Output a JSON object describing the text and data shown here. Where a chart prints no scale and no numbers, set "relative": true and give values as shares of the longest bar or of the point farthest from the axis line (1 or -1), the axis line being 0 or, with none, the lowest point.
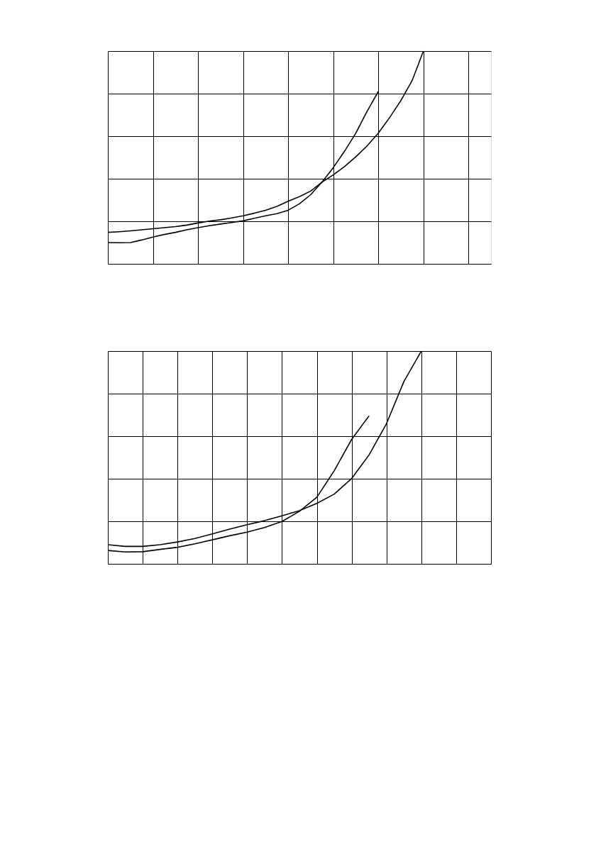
{
  "chart_data": [
    {
      "type": "line",
      "relative": true,
      "grid": true,
      "tick_labels": false,
      "marker": "none",
      "line_style": "solid",
      "categories": [
        null,
        null,
        null,
        null,
        null,
        null,
        null,
        null,
        null,
        null,
        null,
        null,
        null,
        null,
        null,
        null,
        null,
        null,
        null,
        null,
        null,
        null,
        null,
        null,
        null,
        null,
        null,
        null,
        null,
        null,
        null,
        null,
        null,
        null,
        null
      ],
      "series": [
        {
          "color": "#000000",
          "values": [
            0.148,
            0.151,
            0.155,
            0.16,
            0.165,
            0.17,
            0.175,
            0.182,
            0.192,
            0.201,
            0.207,
            0.216,
            0.226,
            0.238,
            0.252,
            0.27,
            0.294,
            0.316,
            0.342,
            0.384,
            0.418,
            0.457,
            0.503,
            0.554,
            0.614,
            0.687,
            0.767,
            0.861,
            1.0,
            null,
            null,
            null,
            null,
            null,
            null
          ]
        },
        {
          "color": "#000000",
          "values": [
            0.1,
            0.099,
            0.1,
            0.112,
            0.126,
            0.138,
            0.148,
            0.16,
            0.17,
            0.179,
            0.187,
            0.194,
            0.202,
            0.214,
            0.226,
            0.236,
            0.252,
            0.282,
            0.325,
            0.384,
            0.452,
            0.529,
            0.614,
            0.716,
            0.81,
            null,
            null,
            null,
            null,
            null,
            null,
            null,
            null,
            null,
            null
          ]
        }
      ]
    },
    {
      "type": "line",
      "relative": true,
      "grid": true,
      "tick_labels": false,
      "marker": "none",
      "line_style": "solid",
      "categories": [
        null,
        null,
        null,
        null,
        null,
        null,
        null,
        null,
        null,
        null,
        null,
        null,
        null,
        null,
        null,
        null,
        null,
        null,
        null,
        null,
        null,
        null,
        null
      ],
      "series": [
        {
          "color": "#000000",
          "values": [
            0.09,
            0.082,
            0.082,
            0.09,
            0.103,
            0.119,
            0.141,
            0.163,
            0.184,
            0.203,
            0.226,
            0.25,
            0.284,
            0.328,
            0.401,
            0.512,
            0.659,
            0.857,
            1.0,
            null,
            null,
            null,
            null
          ]
        },
        {
          "color": "#000000",
          "values": [
            0.063,
            0.056,
            0.057,
            0.068,
            0.078,
            0.094,
            0.113,
            0.132,
            0.149,
            0.171,
            0.199,
            0.247,
            0.313,
            0.438,
            0.585,
            0.696,
            null,
            null,
            null,
            null,
            null,
            null,
            null
          ]
        }
      ]
    }
  ]
}
